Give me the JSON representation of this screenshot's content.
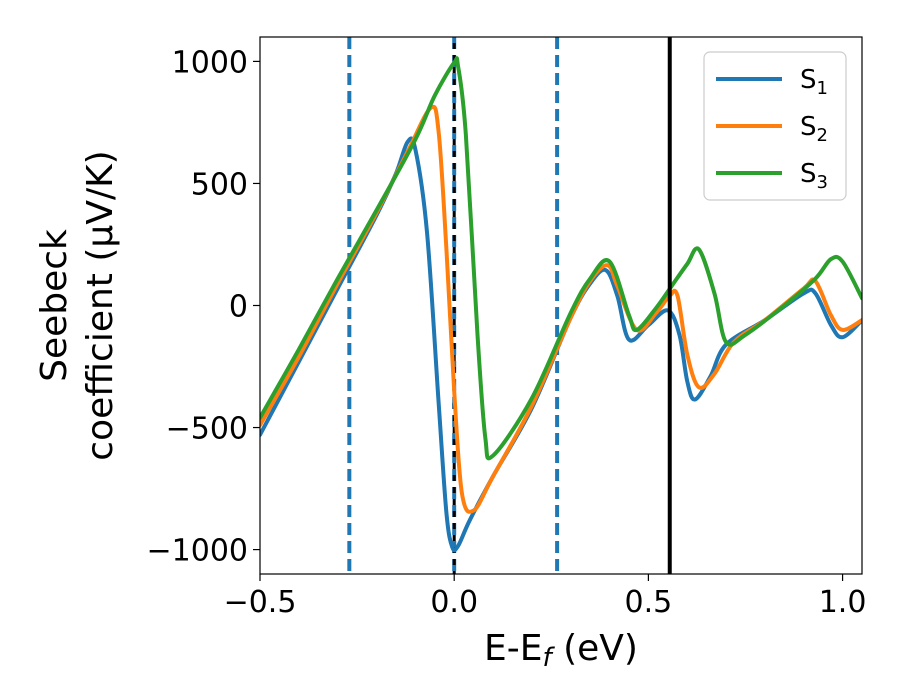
{
  "chart_data": {
    "type": "line",
    "xlabel_main": "E-E",
    "xlabel_sub": "f",
    "xlabel_unit": " (eV)",
    "ylabel_line1": "Seebeck",
    "ylabel_line2": "coefficient  (μV/K)",
    "xlim": [
      -0.5,
      1.05
    ],
    "ylim": [
      -1100,
      1100
    ],
    "xticks": [
      -0.5,
      0.0,
      0.5,
      1.0
    ],
    "xtick_labels": [
      "−0.5",
      "0.0",
      "0.5",
      "1.0"
    ],
    "yticks": [
      -1000,
      -500,
      0,
      500,
      1000
    ],
    "ytick_labels": [
      "−1000",
      "−500",
      "0",
      "500",
      "1000"
    ],
    "legend_position": "top-right",
    "vlines_dashed": [
      -0.27,
      0.0,
      0.265
    ],
    "vline_dashed_color": "#1f77b4",
    "vline_solid": 0.555,
    "vline_black_dashed": 0.0,
    "series": [
      {
        "name": "S",
        "subscript": "1",
        "color": "#1f77b4",
        "points": [
          [
            -0.5,
            -530
          ],
          [
            -0.4,
            -230
          ],
          [
            -0.3,
            70
          ],
          [
            -0.2,
            370
          ],
          [
            -0.15,
            540
          ],
          [
            -0.12,
            670
          ],
          [
            -0.1,
            640
          ],
          [
            -0.07,
            300
          ],
          [
            -0.04,
            -400
          ],
          [
            -0.02,
            -850
          ],
          [
            -0.005,
            -990
          ],
          [
            0.01,
            -985
          ],
          [
            0.04,
            -880
          ],
          [
            0.1,
            -700
          ],
          [
            0.2,
            -420
          ],
          [
            0.3,
            -50
          ],
          [
            0.35,
            90
          ],
          [
            0.39,
            145
          ],
          [
            0.42,
            40
          ],
          [
            0.45,
            -140
          ],
          [
            0.5,
            -80
          ],
          [
            0.55,
            -20
          ],
          [
            0.58,
            -120
          ],
          [
            0.6,
            -310
          ],
          [
            0.62,
            -385
          ],
          [
            0.66,
            -290
          ],
          [
            0.7,
            -160
          ],
          [
            0.8,
            -60
          ],
          [
            0.9,
            50
          ],
          [
            0.93,
            50
          ],
          [
            0.97,
            -80
          ],
          [
            1.0,
            -130
          ],
          [
            1.05,
            -60
          ]
        ]
      },
      {
        "name": "S",
        "subscript": "2",
        "color": "#ff7f0e",
        "points": [
          [
            -0.5,
            -490
          ],
          [
            -0.4,
            -210
          ],
          [
            -0.3,
            90
          ],
          [
            -0.2,
            380
          ],
          [
            -0.12,
            630
          ],
          [
            -0.06,
            810
          ],
          [
            -0.04,
            710
          ],
          [
            -0.02,
            230
          ],
          [
            0.0,
            -350
          ],
          [
            0.02,
            -770
          ],
          [
            0.05,
            -840
          ],
          [
            0.1,
            -700
          ],
          [
            0.2,
            -410
          ],
          [
            0.3,
            -50
          ],
          [
            0.35,
            100
          ],
          [
            0.395,
            165
          ],
          [
            0.42,
            80
          ],
          [
            0.47,
            -100
          ],
          [
            0.52,
            -30
          ],
          [
            0.555,
            40
          ],
          [
            0.575,
            40
          ],
          [
            0.6,
            -200
          ],
          [
            0.63,
            -335
          ],
          [
            0.67,
            -280
          ],
          [
            0.72,
            -150
          ],
          [
            0.8,
            -60
          ],
          [
            0.9,
            70
          ],
          [
            0.93,
            100
          ],
          [
            0.97,
            -40
          ],
          [
            1.0,
            -100
          ],
          [
            1.05,
            -60
          ]
        ]
      },
      {
        "name": "S",
        "subscript": "3",
        "color": "#2ca02c",
        "points": [
          [
            -0.5,
            -460
          ],
          [
            -0.4,
            -180
          ],
          [
            -0.3,
            110
          ],
          [
            -0.2,
            390
          ],
          [
            -0.1,
            680
          ],
          [
            -0.05,
            860
          ],
          [
            0.0,
            995
          ],
          [
            0.01,
            980
          ],
          [
            0.03,
            700
          ],
          [
            0.06,
            -120
          ],
          [
            0.08,
            -540
          ],
          [
            0.1,
            -615
          ],
          [
            0.2,
            -380
          ],
          [
            0.3,
            -30
          ],
          [
            0.35,
            110
          ],
          [
            0.4,
            180
          ],
          [
            0.45,
            -40
          ],
          [
            0.47,
            -100
          ],
          [
            0.52,
            -10
          ],
          [
            0.56,
            80
          ],
          [
            0.6,
            170
          ],
          [
            0.63,
            230
          ],
          [
            0.67,
            50
          ],
          [
            0.7,
            -150
          ],
          [
            0.75,
            -120
          ],
          [
            0.85,
            0
          ],
          [
            0.93,
            110
          ],
          [
            0.97,
            190
          ],
          [
            1.0,
            180
          ],
          [
            1.05,
            30
          ]
        ]
      }
    ]
  }
}
